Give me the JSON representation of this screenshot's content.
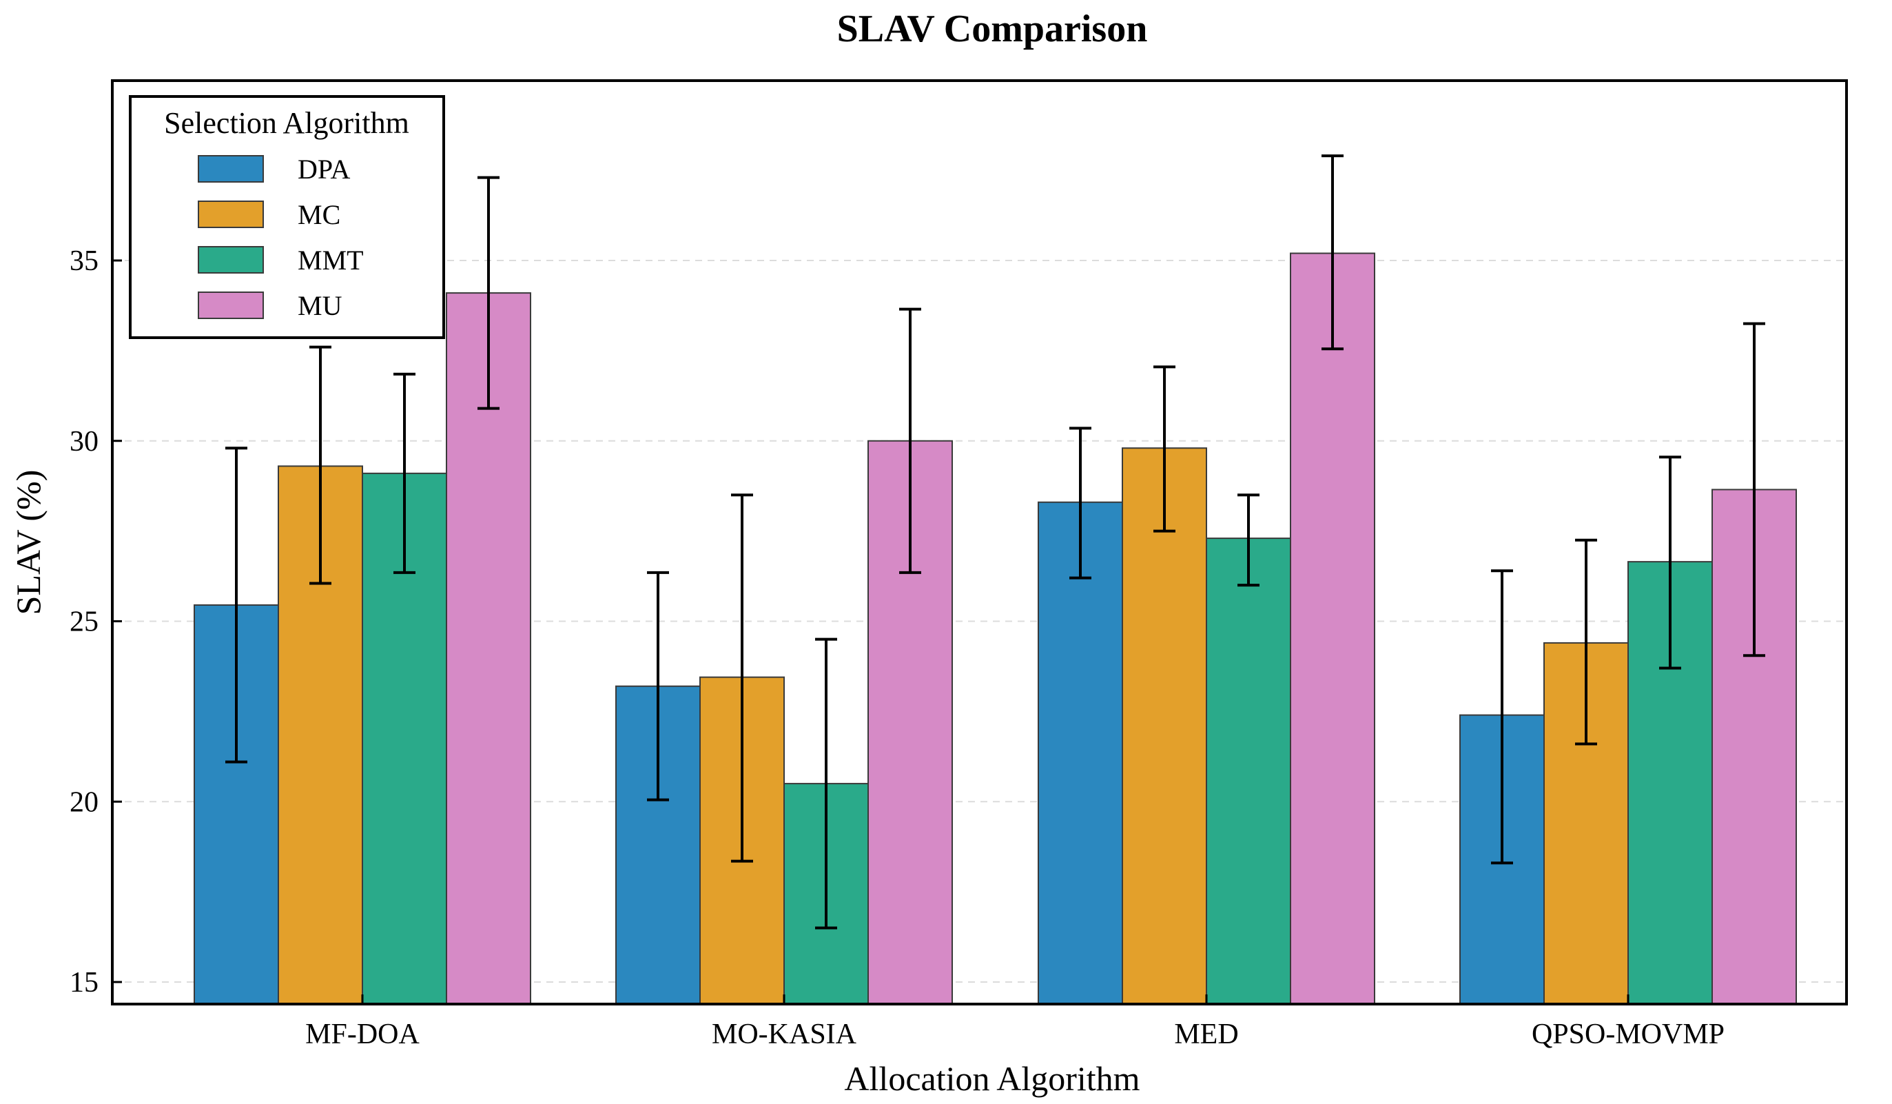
{
  "chart_data": {
    "type": "bar",
    "title": "SLAV Comparison",
    "xlabel": "Allocation Algorithm",
    "ylabel": "SLAV (%)",
    "ylim": [
      14.4,
      40.0
    ],
    "yticks": [
      15,
      20,
      25,
      30,
      35
    ],
    "grid": "horizontal-dashed",
    "categories": [
      "MF-DOA",
      "MO-KASIA",
      "MED",
      "QPSO-MOVMP"
    ],
    "legend": {
      "title": "Selection Algorithm",
      "placement": "top-left"
    },
    "series": [
      {
        "name": "DPA",
        "color": "#2b88bf",
        "values": [
          25.45,
          23.2,
          28.3,
          22.4
        ],
        "error_low": [
          21.1,
          20.05,
          26.2,
          18.3
        ],
        "error_high": [
          29.8,
          26.35,
          30.35,
          26.4
        ]
      },
      {
        "name": "MC",
        "color": "#e3a02b",
        "values": [
          29.3,
          23.45,
          29.8,
          24.4
        ],
        "error_low": [
          26.05,
          18.35,
          27.5,
          21.6
        ],
        "error_high": [
          32.6,
          28.5,
          32.05,
          27.25
        ]
      },
      {
        "name": "MMT",
        "color": "#2aaa8a",
        "values": [
          29.1,
          20.5,
          27.3,
          26.65
        ],
        "error_low": [
          26.35,
          16.5,
          26.0,
          23.7
        ],
        "error_high": [
          31.85,
          24.5,
          28.5,
          29.55
        ]
      },
      {
        "name": "MU",
        "color": "#d68ac6",
        "values": [
          34.1,
          30.0,
          35.2,
          28.65
        ],
        "error_low": [
          30.9,
          26.35,
          32.55,
          24.05
        ],
        "error_high": [
          37.3,
          33.65,
          37.9,
          33.25
        ]
      }
    ]
  }
}
